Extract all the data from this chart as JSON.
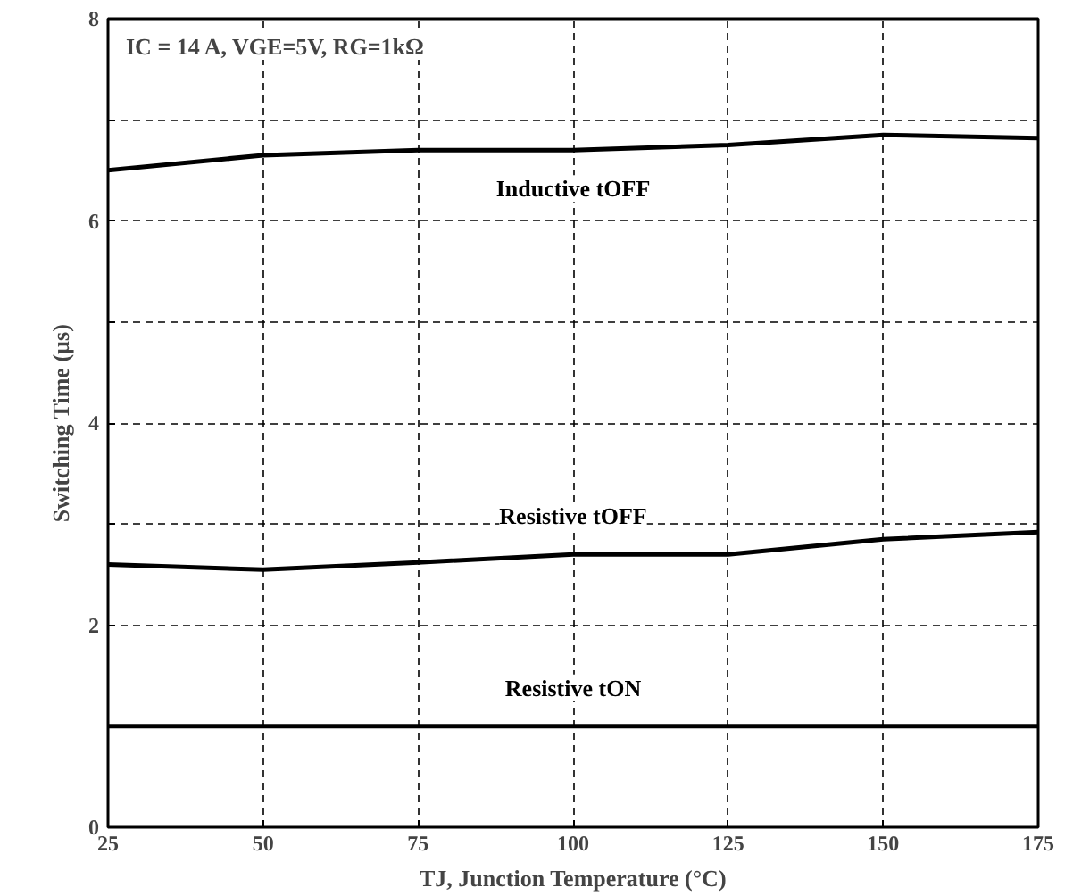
{
  "chart_data": {
    "type": "line",
    "xlabel": "TJ, Junction Temperature (°C)",
    "ylabel": "Switching Time (µs)",
    "x": [
      25,
      50,
      75,
      100,
      125,
      150,
      175
    ],
    "series": [
      {
        "name": "Inductive tOFF",
        "color": "#000000",
        "values": [
          6.5,
          6.65,
          6.7,
          6.7,
          6.75,
          6.85,
          6.82
        ]
      },
      {
        "name": "Resistive tOFF",
        "color": "#000000",
        "values": [
          2.6,
          2.55,
          2.62,
          2.7,
          2.7,
          2.85,
          2.92
        ]
      },
      {
        "name": "Resistive tON",
        "color": "#000000",
        "values": [
          1.0,
          1.0,
          1.0,
          1.0,
          1.0,
          1.0,
          1.0
        ]
      }
    ],
    "annotations": [
      "IC = 14 A, VGE=5V, RG=1kΩ"
    ],
    "xlim": [
      25,
      175
    ],
    "ylim": [
      0,
      8
    ],
    "xticks": [
      25,
      50,
      75,
      100,
      125,
      150,
      175
    ],
    "yticks": [
      0,
      {
        "value": 1,
        "label": null
      },
      2,
      {
        "value": 3,
        "label": null
      },
      4,
      {
        "value": 5,
        "label": null
      },
      6,
      {
        "value": 7,
        "label": null
      },
      8
    ],
    "grid": true,
    "line_style": "solid",
    "marker": "none"
  }
}
